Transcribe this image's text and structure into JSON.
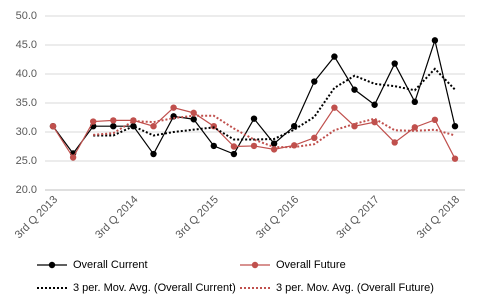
{
  "chart_data": {
    "type": "line",
    "categories": [
      "3rd Q 2013",
      null,
      null,
      null,
      "3rd Q 2014",
      null,
      null,
      null,
      "3rd Q 2015",
      null,
      null,
      null,
      "3rd Q 2016",
      null,
      null,
      null,
      "3rd Q 2017",
      null,
      null,
      null,
      "3rd Q 2018"
    ],
    "series": [
      {
        "name": "Overall Current",
        "color": "#000000",
        "style": "solid",
        "marker": true,
        "values": [
          31.0,
          26.3,
          31.0,
          31.0,
          31.0,
          26.2,
          32.7,
          32.2,
          27.6,
          26.2,
          32.3,
          28.0,
          31.0,
          38.7,
          43.0,
          37.3,
          34.7,
          41.8,
          35.2,
          45.8,
          31.0
        ]
      },
      {
        "name": "Overall Future",
        "color": "#c0504d",
        "style": "solid",
        "marker": true,
        "values": [
          31.0,
          25.6,
          31.8,
          32.0,
          32.0,
          31.0,
          34.2,
          33.3,
          31.0,
          27.5,
          27.6,
          27.0,
          27.7,
          29.0,
          34.2,
          31.0,
          31.7,
          28.2,
          30.8,
          32.1,
          25.4
        ]
      },
      {
        "name": "3 per. Mov. Avg. (Overall Current)",
        "color": "#000000",
        "style": "dotted",
        "marker": false,
        "values": [
          null,
          null,
          29.4,
          29.4,
          31.0,
          29.4,
          30.0,
          30.4,
          30.8,
          28.7,
          28.7,
          28.8,
          30.4,
          32.6,
          37.6,
          39.7,
          38.3,
          37.9,
          37.2,
          40.9,
          37.3
        ]
      },
      {
        "name": "3 per. Mov. Avg. (Overall Future)",
        "color": "#c0504d",
        "style": "dotted",
        "marker": false,
        "values": [
          null,
          null,
          29.5,
          29.8,
          31.9,
          31.7,
          32.4,
          32.8,
          32.8,
          30.6,
          28.7,
          27.4,
          27.4,
          27.9,
          30.3,
          31.4,
          32.3,
          30.3,
          30.2,
          30.4,
          29.4
        ]
      }
    ],
    "ylim": [
      20,
      50
    ],
    "yticks": [
      {
        "value": 20,
        "label": "20.0"
      },
      {
        "value": 25,
        "label": "25.0"
      },
      {
        "value": 30,
        "label": "30.0"
      },
      {
        "value": 35,
        "label": "35.0"
      },
      {
        "value": 40,
        "label": "40.0"
      },
      {
        "value": 45,
        "label": "45.0"
      },
      {
        "value": 50,
        "label": "50.0"
      }
    ],
    "grid": true,
    "legend": "bottom"
  }
}
